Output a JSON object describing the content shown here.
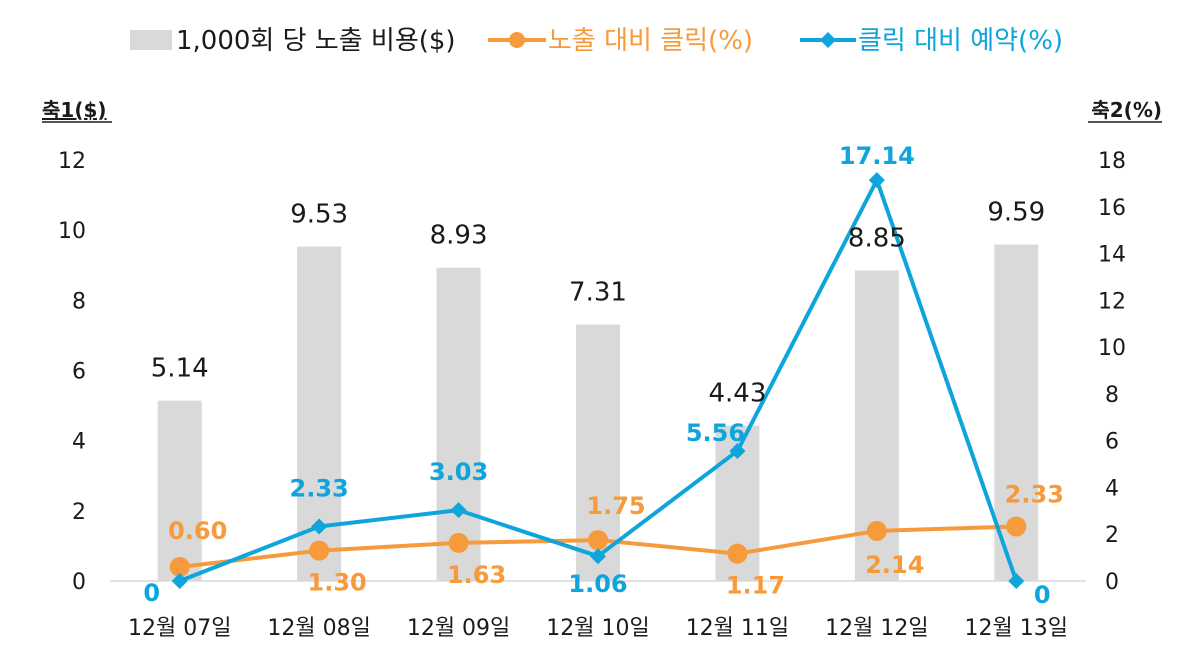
{
  "legend": {
    "items": [
      {
        "label": "1,000회 당 노출 비용($)",
        "symbol": "bar"
      },
      {
        "label": "노출 대비 클릭(%)",
        "symbol": "line-circle"
      },
      {
        "label": "클릭 대비 예약(%)",
        "symbol": "line-diamond"
      }
    ]
  },
  "colors": {
    "bar": "#d9d9d9",
    "ctr": "#f79a3b",
    "booking": "#0ea5dc",
    "text": "#1a1a1a",
    "axis": "#d9d9d9"
  },
  "chart_data": {
    "type": "bar",
    "categories": [
      "12월 07일",
      "12월 08일",
      "12월 09일",
      "12월 10일",
      "12월 11일",
      "12월 12일",
      "12월 13일"
    ],
    "y1_label": "축1($)",
    "y2_label": "축2(%)",
    "y1lim": [
      0,
      12
    ],
    "y2lim": [
      0,
      18
    ],
    "y1_ticks": [
      0,
      2,
      4,
      6,
      8,
      10,
      12
    ],
    "y2_ticks": [
      0,
      2,
      4,
      6,
      8,
      10,
      12,
      14,
      16,
      18
    ],
    "grid": false,
    "legend_position": "top",
    "series": [
      {
        "name": "1,000회 당 노출 비용($)",
        "type": "bar",
        "axis": "y1",
        "values": [
          5.14,
          9.53,
          8.93,
          7.31,
          4.43,
          8.85,
          9.59
        ],
        "labels": [
          "5.14",
          "9.53",
          "8.93",
          "7.31",
          "4.43",
          "8.85",
          "9.59"
        ]
      },
      {
        "name": "노출 대비 클릭(%)",
        "type": "line",
        "axis": "y2",
        "values": [
          0.6,
          1.3,
          1.63,
          1.75,
          1.17,
          2.14,
          2.33
        ],
        "labels": [
          "0.60",
          "1.30",
          "1.63",
          "1.75",
          "1.17",
          "2.14",
          "2.33"
        ]
      },
      {
        "name": "클릭 대비 예약(%)",
        "type": "line",
        "axis": "y2",
        "values": [
          0,
          2.33,
          3.03,
          1.06,
          5.56,
          17.14,
          0
        ],
        "labels": [
          "0",
          "2.33",
          "3.03",
          "1.06",
          "5.56",
          "17.14",
          "0"
        ]
      }
    ]
  }
}
